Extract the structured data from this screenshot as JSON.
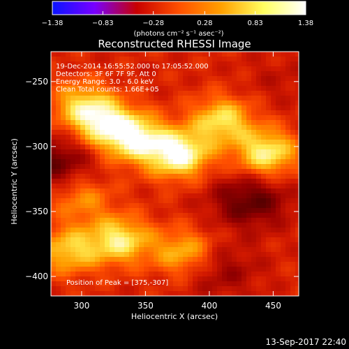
{
  "chart_data": {
    "type": "heatmap",
    "title": "Reconstructed RHESSI Image",
    "xlabel": "Heliocentric X (arcsec)",
    "ylabel": "Heliocentric Y (arcsec)",
    "xlim": [
      276,
      470
    ],
    "ylim": [
      -415,
      -227
    ],
    "x_ticks": [
      300,
      350,
      400,
      450
    ],
    "y_ticks": [
      -250,
      -300,
      -350,
      -400
    ],
    "colorbar": {
      "label": "(photons cm⁻² s⁻¹ asec⁻²)",
      "range": [
        -1.38,
        1.38
      ],
      "ticks": [
        "-1.38",
        "-0.83",
        "-0.28",
        "0.28",
        "0.83",
        "1.38"
      ],
      "colormap": [
        "#0a14ff",
        "#7800ff",
        "#c80000",
        "#ff5000",
        "#ffa000",
        "#ffff60",
        "#ffffff"
      ]
    },
    "annotations": {
      "time_range": "19-Dec-2014 16:55:52.000 to 17:05:52.000",
      "detectors": "Detectors: 3F 6F 7F 9F, Att 0",
      "energy_range": "Energy Range: 3.0 - 6.0 keV",
      "clean": "Clean     Total counts: 1.66E+05",
      "peak": "Position of Peak = [375,-307]"
    },
    "sources": [
      {
        "x": 376,
        "y": -306,
        "value": 1.38
      },
      {
        "x": 342,
        "y": -294,
        "value": 1.25
      },
      {
        "x": 318,
        "y": -282,
        "value": 1.1
      },
      {
        "x": 445,
        "y": -305,
        "value": 1.2
      },
      {
        "x": 410,
        "y": -280,
        "value": 1.1
      },
      {
        "x": 300,
        "y": -268,
        "value": 0.95
      },
      {
        "x": 330,
        "y": -372,
        "value": 1.15
      },
      {
        "x": 290,
        "y": -380,
        "value": 1.0
      },
      {
        "x": 380,
        "y": -382,
        "value": 0.95
      },
      {
        "x": 300,
        "y": -340,
        "value": 0.75
      }
    ],
    "dark_regions": [
      {
        "x": 278,
        "y": -312,
        "value": -0.2
      },
      {
        "x": 432,
        "y": -342,
        "value": -0.25
      },
      {
        "x": 408,
        "y": -395,
        "value": 0.0
      },
      {
        "x": 455,
        "y": -250,
        "value": 0.2
      }
    ]
  },
  "footer": {
    "timestamp": "13-Sep-2017 22:40"
  }
}
